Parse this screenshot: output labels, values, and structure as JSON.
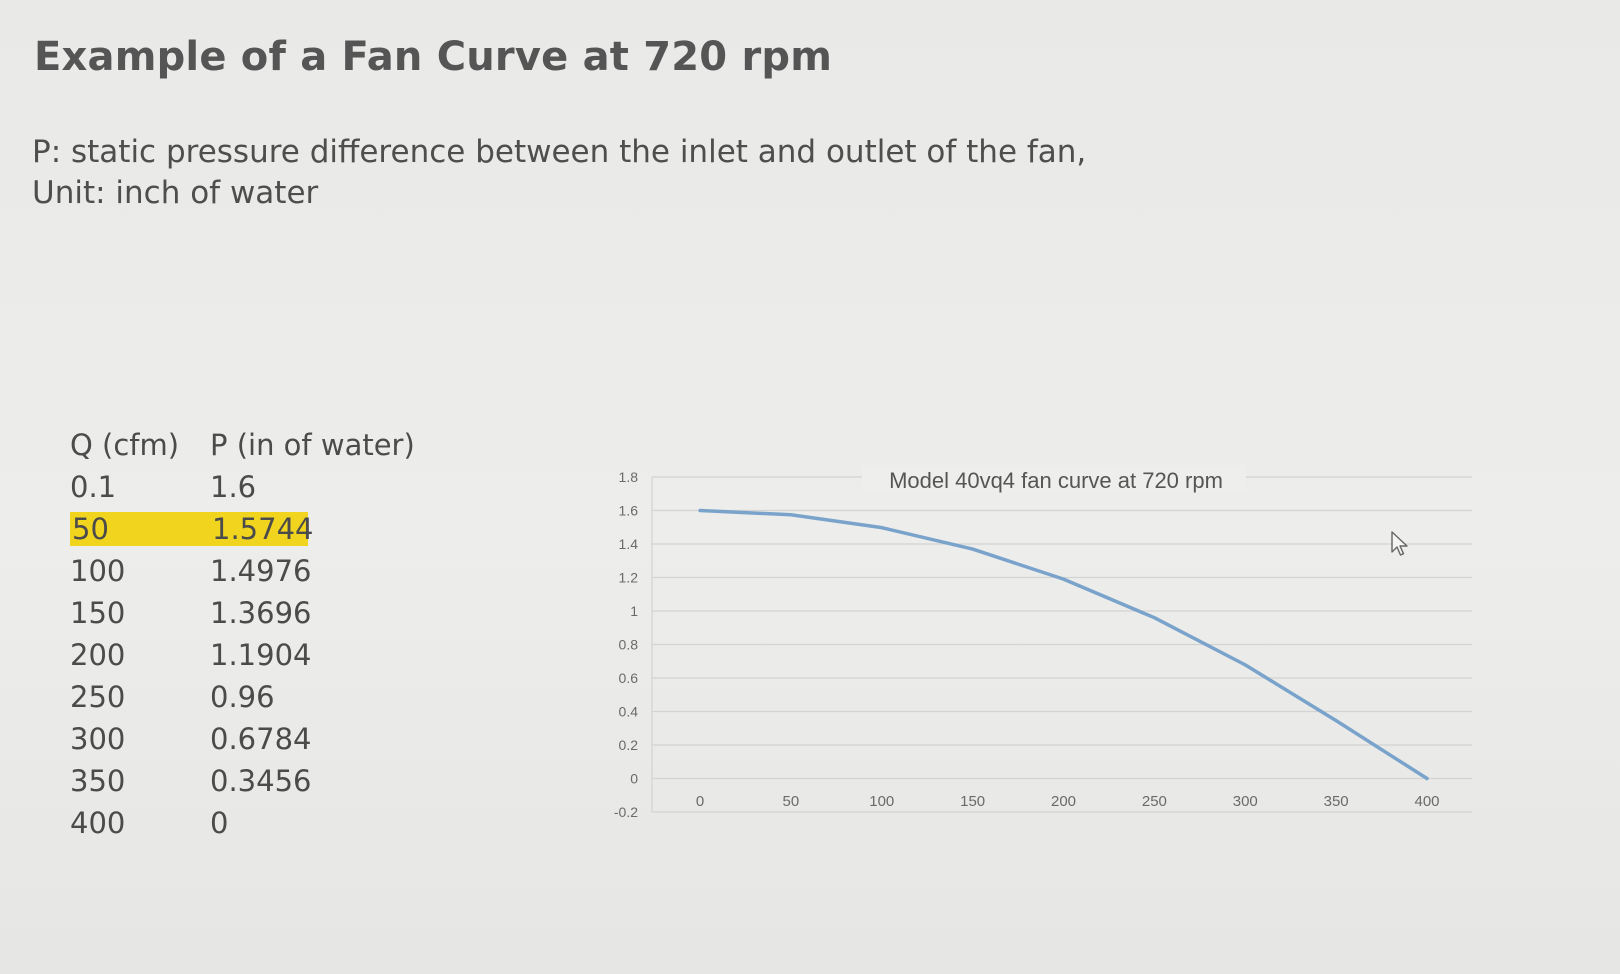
{
  "slide": {
    "title": "Example of a Fan Curve at 720 rpm",
    "desc_line1": "P: static pressure difference between the inlet and outlet of the fan,",
    "desc_line2": "Unit: inch of water"
  },
  "table": {
    "headers": [
      "Q (cfm)",
      "P (in of water)"
    ],
    "rows": [
      [
        "0.1",
        "1.6"
      ],
      [
        "50",
        "1.5744"
      ],
      [
        "100",
        "1.4976"
      ],
      [
        "150",
        "1.3696"
      ],
      [
        "200",
        "1.1904"
      ],
      [
        "250",
        "0.96"
      ],
      [
        "300",
        "0.6784"
      ],
      [
        "350",
        "0.3456"
      ],
      [
        "400",
        "0"
      ]
    ],
    "highlight_row": 1,
    "highlight_color": "#f1d41e"
  },
  "chart_data": {
    "type": "line",
    "title": "Model 40vq4 fan curve at 720 rpm",
    "x": [
      0.1,
      50,
      100,
      150,
      200,
      250,
      300,
      350,
      400
    ],
    "series": [
      {
        "values": [
          1.6,
          1.5744,
          1.4976,
          1.3696,
          1.1904,
          0.96,
          0.6784,
          0.3456,
          0
        ]
      }
    ],
    "x_ticks": [
      "0",
      "50",
      "100",
      "150",
      "200",
      "250",
      "300",
      "350",
      "400"
    ],
    "y_ticks": [
      "1.8",
      "1.6",
      "1.4",
      "1.2",
      "1",
      "0.8",
      "0.6",
      "0.4",
      "0.2",
      "0",
      "-0.2"
    ],
    "xlim": [
      0,
      400
    ],
    "ylim": [
      -0.2,
      1.8
    ],
    "grid": true,
    "line_color": "#7aa3cc",
    "grid_color": "#d3d3d3"
  },
  "icons": {
    "cursor": "mouse-pointer-icon"
  }
}
